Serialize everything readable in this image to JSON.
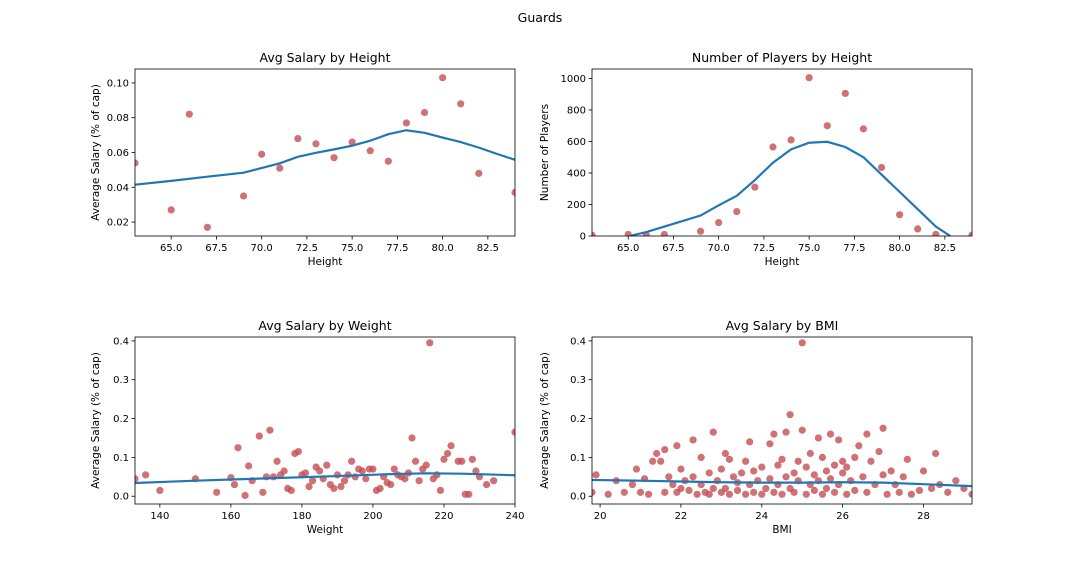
{
  "suptitle": "Guards",
  "colors": {
    "points": "#c44e52",
    "fit": "#1f77b4",
    "axes": "#000000"
  },
  "chart_data": [
    {
      "type": "scatter",
      "title": "Avg Salary by Height",
      "xlabel": "Height",
      "ylabel": "Average Salary (% of cap)",
      "xlim": [
        63,
        84
      ],
      "ylim": [
        0.012,
        0.108
      ],
      "xticks": [
        65.0,
        67.5,
        70.0,
        72.5,
        75.0,
        77.5,
        80.0,
        82.5
      ],
      "xtick_labels": [
        "65.0",
        "67.5",
        "70.0",
        "72.5",
        "75.0",
        "77.5",
        "80.0",
        "82.5"
      ],
      "yticks": [
        0.02,
        0.04,
        0.06,
        0.08,
        0.1
      ],
      "ytick_labels": [
        "0.02",
        "0.04",
        "0.06",
        "0.08",
        "0.10"
      ],
      "points": [
        [
          63,
          0.054
        ],
        [
          65,
          0.027
        ],
        [
          66,
          0.082
        ],
        [
          67,
          0.017
        ],
        [
          69,
          0.035
        ],
        [
          70,
          0.059
        ],
        [
          71,
          0.051
        ],
        [
          72,
          0.068
        ],
        [
          73,
          0.065
        ],
        [
          74,
          0.057
        ],
        [
          75,
          0.066
        ],
        [
          76,
          0.061
        ],
        [
          77,
          0.055
        ],
        [
          78,
          0.077
        ],
        [
          79,
          0.083
        ],
        [
          80,
          0.103
        ],
        [
          81,
          0.088
        ],
        [
          82,
          0.048
        ],
        [
          84,
          0.037
        ]
      ],
      "fit_line": [
        [
          63,
          0.0415
        ],
        [
          65,
          0.0437
        ],
        [
          67,
          0.0461
        ],
        [
          69,
          0.0484
        ],
        [
          71,
          0.0538
        ],
        [
          72,
          0.0575
        ],
        [
          73,
          0.0598
        ],
        [
          74,
          0.0618
        ],
        [
          75,
          0.0639
        ],
        [
          76,
          0.0668
        ],
        [
          77,
          0.0705
        ],
        [
          78,
          0.0728
        ],
        [
          79,
          0.0713
        ],
        [
          80,
          0.0686
        ],
        [
          81,
          0.066
        ],
        [
          82,
          0.0628
        ],
        [
          83,
          0.0592
        ],
        [
          84,
          0.0558
        ]
      ]
    },
    {
      "type": "scatter",
      "title": "Number of Players by Height",
      "xlabel": "Height",
      "ylabel": "Number of Players",
      "xlim": [
        63,
        84
      ],
      "ylim": [
        0,
        1060
      ],
      "xticks": [
        65.0,
        67.5,
        70.0,
        72.5,
        75.0,
        77.5,
        80.0,
        82.5
      ],
      "xtick_labels": [
        "65.0",
        "67.5",
        "70.0",
        "72.5",
        "75.0",
        "77.5",
        "80.0",
        "82.5"
      ],
      "yticks": [
        0,
        200,
        400,
        600,
        800,
        1000
      ],
      "ytick_labels": [
        "0",
        "200",
        "400",
        "600",
        "800",
        "1000"
      ],
      "points": [
        [
          63,
          5
        ],
        [
          65,
          10
        ],
        [
          66,
          5
        ],
        [
          67,
          10
        ],
        [
          69,
          30
        ],
        [
          70,
          85
        ],
        [
          71,
          155
        ],
        [
          72,
          310
        ],
        [
          73,
          565
        ],
        [
          74,
          610
        ],
        [
          75,
          1005
        ],
        [
          76,
          700
        ],
        [
          77,
          905
        ],
        [
          78,
          680
        ],
        [
          79,
          435
        ],
        [
          80,
          135
        ],
        [
          81,
          45
        ],
        [
          82,
          10
        ],
        [
          84,
          5
        ]
      ],
      "fit_line": [
        [
          65.1,
          0
        ],
        [
          66,
          25
        ],
        [
          67,
          60
        ],
        [
          68,
          95
        ],
        [
          69,
          130
        ],
        [
          70,
          195
        ],
        [
          71,
          255
        ],
        [
          72,
          355
        ],
        [
          73,
          465
        ],
        [
          74,
          550
        ],
        [
          75,
          592
        ],
        [
          76,
          598
        ],
        [
          77,
          565
        ],
        [
          78,
          500
        ],
        [
          79,
          390
        ],
        [
          80,
          280
        ],
        [
          81,
          170
        ],
        [
          82,
          60
        ],
        [
          82.8,
          0
        ]
      ]
    },
    {
      "type": "scatter",
      "title": "Avg Salary by Weight",
      "xlabel": "Weight",
      "ylabel": "Average Salary (% of cap)",
      "xlim": [
        133,
        240
      ],
      "ylim": [
        -0.02,
        0.41
      ],
      "xticks": [
        140,
        160,
        180,
        200,
        220,
        240
      ],
      "xtick_labels": [
        "140",
        "160",
        "180",
        "200",
        "220",
        "240"
      ],
      "yticks": [
        0.0,
        0.1,
        0.2,
        0.3,
        0.4
      ],
      "ytick_labels": [
        "0.0",
        "0.1",
        "0.2",
        "0.3",
        "0.4"
      ],
      "points": [
        [
          133,
          0.045
        ],
        [
          136,
          0.055
        ],
        [
          140,
          0.015
        ],
        [
          150,
          0.045
        ],
        [
          156,
          0.01
        ],
        [
          160,
          0.048
        ],
        [
          161,
          0.03
        ],
        [
          162,
          0.125
        ],
        [
          164,
          0.002
        ],
        [
          165,
          0.078
        ],
        [
          166,
          0.04
        ],
        [
          168,
          0.155
        ],
        [
          169,
          0.01
        ],
        [
          170,
          0.05
        ],
        [
          171,
          0.17
        ],
        [
          172,
          0.05
        ],
        [
          173,
          0.09
        ],
        [
          174,
          0.055
        ],
        [
          175,
          0.065
        ],
        [
          176,
          0.02
        ],
        [
          177,
          0.015
        ],
        [
          178,
          0.11
        ],
        [
          179,
          0.115
        ],
        [
          180,
          0.055
        ],
        [
          181,
          0.06
        ],
        [
          182,
          0.025
        ],
        [
          183,
          0.04
        ],
        [
          184,
          0.075
        ],
        [
          185,
          0.065
        ],
        [
          186,
          0.045
        ],
        [
          187,
          0.08
        ],
        [
          188,
          0.03
        ],
        [
          189,
          0.02
        ],
        [
          190,
          0.055
        ],
        [
          191,
          0.025
        ],
        [
          192,
          0.04
        ],
        [
          193,
          0.055
        ],
        [
          194,
          0.09
        ],
        [
          195,
          0.05
        ],
        [
          196,
          0.07
        ],
        [
          197,
          0.065
        ],
        [
          198,
          0.045
        ],
        [
          199,
          0.07
        ],
        [
          200,
          0.07
        ],
        [
          201,
          0.015
        ],
        [
          202,
          0.02
        ],
        [
          203,
          0.05
        ],
        [
          204,
          0.035
        ],
        [
          205,
          0.03
        ],
        [
          206,
          0.07
        ],
        [
          207,
          0.055
        ],
        [
          208,
          0.05
        ],
        [
          209,
          0.045
        ],
        [
          210,
          0.06
        ],
        [
          211,
          0.15
        ],
        [
          212,
          0.09
        ],
        [
          213,
          0.04
        ],
        [
          214,
          0.07
        ],
        [
          215,
          0.08
        ],
        [
          216,
          0.395
        ],
        [
          217,
          0.045
        ],
        [
          218,
          0.055
        ],
        [
          219,
          0.015
        ],
        [
          220,
          0.095
        ],
        [
          221,
          0.11
        ],
        [
          222,
          0.13
        ],
        [
          224,
          0.09
        ],
        [
          225,
          0.09
        ],
        [
          226,
          0.005
        ],
        [
          227,
          0.005
        ],
        [
          228,
          0.095
        ],
        [
          229,
          0.065
        ],
        [
          230,
          0.05
        ],
        [
          232,
          0.03
        ],
        [
          234,
          0.04
        ],
        [
          240,
          0.165
        ]
      ],
      "fit_line": [
        [
          133,
          0.034
        ],
        [
          150,
          0.04
        ],
        [
          170,
          0.046
        ],
        [
          190,
          0.052
        ],
        [
          205,
          0.057
        ],
        [
          215,
          0.059
        ],
        [
          225,
          0.058
        ],
        [
          240,
          0.054
        ]
      ]
    },
    {
      "type": "scatter",
      "title": "Avg Salary by BMI",
      "xlabel": "BMI",
      "ylabel": "Average Salary (% of cap)",
      "xlim": [
        19.8,
        29.2
      ],
      "ylim": [
        -0.02,
        0.41
      ],
      "xticks": [
        20,
        22,
        24,
        26,
        28
      ],
      "xtick_labels": [
        "20",
        "22",
        "24",
        "26",
        "28"
      ],
      "yticks": [
        0.0,
        0.1,
        0.2,
        0.3,
        0.4
      ],
      "ytick_labels": [
        "0.0",
        "0.1",
        "0.2",
        "0.3",
        "0.4"
      ],
      "points": [
        [
          19.8,
          0.01
        ],
        [
          19.9,
          0.055
        ],
        [
          20.2,
          0.005
        ],
        [
          20.4,
          0.04
        ],
        [
          20.6,
          0.01
        ],
        [
          20.8,
          0.03
        ],
        [
          20.9,
          0.07
        ],
        [
          21.0,
          0.01
        ],
        [
          21.1,
          0.045
        ],
        [
          21.2,
          0.005
        ],
        [
          21.3,
          0.09
        ],
        [
          21.4,
          0.11
        ],
        [
          21.5,
          0.09
        ],
        [
          21.6,
          0.12
        ],
        [
          21.6,
          0.01
        ],
        [
          21.7,
          0.05
        ],
        [
          21.8,
          0.03
        ],
        [
          21.9,
          0.13
        ],
        [
          21.9,
          0.01
        ],
        [
          22.0,
          0.07
        ],
        [
          22.0,
          0.02
        ],
        [
          22.1,
          0.04
        ],
        [
          22.2,
          0.015
        ],
        [
          22.3,
          0.145
        ],
        [
          22.3,
          0.05
        ],
        [
          22.4,
          0.005
        ],
        [
          22.5,
          0.1
        ],
        [
          22.5,
          0.03
        ],
        [
          22.6,
          0.01
        ],
        [
          22.7,
          0.06
        ],
        [
          22.7,
          0.005
        ],
        [
          22.8,
          0.02
        ],
        [
          22.8,
          0.165
        ],
        [
          22.9,
          0.04
        ],
        [
          23.0,
          0.01
        ],
        [
          23.0,
          0.07
        ],
        [
          23.1,
          0.11
        ],
        [
          23.1,
          0.02
        ],
        [
          23.2,
          0.005
        ],
        [
          23.2,
          0.095
        ],
        [
          23.3,
          0.05
        ],
        [
          23.4,
          0.015
        ],
        [
          23.4,
          0.035
        ],
        [
          23.5,
          0.06
        ],
        [
          23.6,
          0.005
        ],
        [
          23.6,
          0.09
        ],
        [
          23.7,
          0.14
        ],
        [
          23.7,
          0.03
        ],
        [
          23.8,
          0.01
        ],
        [
          23.8,
          0.065
        ],
        [
          23.9,
          0.04
        ],
        [
          24.0,
          0.075
        ],
        [
          24.0,
          0.005
        ],
        [
          24.1,
          0.02
        ],
        [
          24.2,
          0.135
        ],
        [
          24.2,
          0.045
        ],
        [
          24.3,
          0.16
        ],
        [
          24.3,
          0.01
        ],
        [
          24.4,
          0.08
        ],
        [
          24.4,
          0.03
        ],
        [
          24.5,
          0.005
        ],
        [
          24.5,
          0.095
        ],
        [
          24.6,
          0.05
        ],
        [
          24.6,
          0.165
        ],
        [
          24.7,
          0.02
        ],
        [
          24.7,
          0.21
        ],
        [
          24.8,
          0.06
        ],
        [
          24.8,
          0.01
        ],
        [
          24.9,
          0.09
        ],
        [
          24.9,
          0.04
        ],
        [
          25.0,
          0.395
        ],
        [
          25.0,
          0.17
        ],
        [
          25.1,
          0.005
        ],
        [
          25.1,
          0.075
        ],
        [
          25.2,
          0.11
        ],
        [
          25.2,
          0.03
        ],
        [
          25.3,
          0.055
        ],
        [
          25.3,
          0.015
        ],
        [
          25.4,
          0.15
        ],
        [
          25.4,
          0.04
        ],
        [
          25.5,
          0.1
        ],
        [
          25.5,
          0.005
        ],
        [
          25.6,
          0.065
        ],
        [
          25.6,
          0.02
        ],
        [
          25.7,
          0.16
        ],
        [
          25.7,
          0.045
        ],
        [
          25.8,
          0.08
        ],
        [
          25.8,
          0.01
        ],
        [
          25.9,
          0.145
        ],
        [
          25.9,
          0.03
        ],
        [
          26.0,
          0.06
        ],
        [
          26.0,
          0.09
        ],
        [
          26.1,
          0.005
        ],
        [
          26.1,
          0.075
        ],
        [
          26.2,
          0.04
        ],
        [
          26.3,
          0.1
        ],
        [
          26.3,
          0.015
        ],
        [
          26.4,
          0.13
        ],
        [
          26.5,
          0.05
        ],
        [
          26.6,
          0.16
        ],
        [
          26.6,
          0.01
        ],
        [
          26.7,
          0.09
        ],
        [
          26.8,
          0.03
        ],
        [
          26.9,
          0.115
        ],
        [
          27.0,
          0.055
        ],
        [
          27.0,
          0.175
        ],
        [
          27.1,
          0.005
        ],
        [
          27.2,
          0.065
        ],
        [
          27.3,
          0.03
        ],
        [
          27.4,
          0.01
        ],
        [
          27.5,
          0.05
        ],
        [
          27.6,
          0.095
        ],
        [
          27.7,
          0.005
        ],
        [
          27.9,
          0.015
        ],
        [
          28.0,
          0.065
        ],
        [
          28.2,
          0.02
        ],
        [
          28.3,
          0.11
        ],
        [
          28.4,
          0.03
        ],
        [
          28.6,
          0.01
        ],
        [
          28.8,
          0.04
        ],
        [
          29.0,
          0.02
        ],
        [
          29.2,
          0.005
        ]
      ],
      "fit_line": [
        [
          19.8,
          0.042
        ],
        [
          21,
          0.04
        ],
        [
          22,
          0.038
        ],
        [
          23,
          0.036
        ],
        [
          24,
          0.035
        ],
        [
          25,
          0.035
        ],
        [
          26,
          0.036
        ],
        [
          27,
          0.035
        ],
        [
          28,
          0.031
        ],
        [
          29.2,
          0.026
        ]
      ]
    }
  ]
}
